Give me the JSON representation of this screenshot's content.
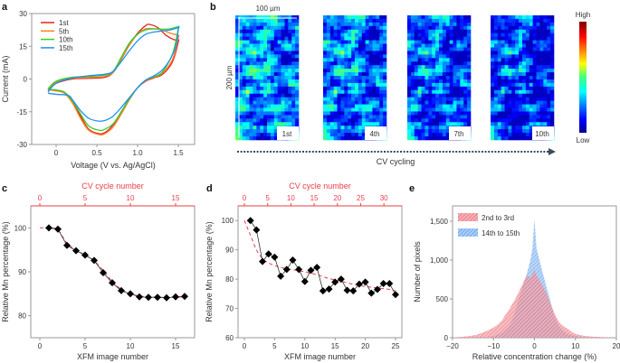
{
  "panels": {
    "a": "a",
    "b": "b",
    "c": "c",
    "d": "d",
    "e": "e"
  },
  "colors": {
    "axis": "#9a9a9a",
    "text": "#333333",
    "red_axis": "#e8404a",
    "cycle_1": "#e82020",
    "cycle_5": "#ff8020",
    "cycle_10": "#30d030",
    "cycle_15": "#2090f0",
    "hist_red": "#f08080",
    "hist_blue": "#6aa8f0",
    "arrow": "#3c4a5c"
  },
  "chart_data": [
    {
      "id": "a",
      "type": "line",
      "title": "",
      "xlabel": "Voltage (V vs. Ag/AgCl)",
      "ylabel": "Current (mA)",
      "xlim": [
        -0.2,
        1.7
      ],
      "ylim": [
        -30,
        30
      ],
      "xticks": [
        "0",
        "0.5",
        "1.0",
        "1.5"
      ],
      "xtick_values": [
        0,
        0.5,
        1.0,
        1.5
      ],
      "yticks": [
        "30",
        "15",
        "0",
        "-15",
        "-30"
      ],
      "ytick_values": [
        30,
        15,
        0,
        -15,
        -30
      ],
      "legend": "top-left",
      "series": [
        {
          "name": "1st",
          "color_key": "cycle_1",
          "forward": [
            [
              -0.1,
              -5
            ],
            [
              0,
              -2
            ],
            [
              0.2,
              0
            ],
            [
              0.4,
              0.3
            ],
            [
              0.6,
              0.8
            ],
            [
              0.7,
              3
            ],
            [
              0.8,
              9
            ],
            [
              0.9,
              16
            ],
            [
              1.0,
              21
            ],
            [
              1.1,
              24.5
            ],
            [
              1.15,
              25
            ],
            [
              1.25,
              23.5
            ],
            [
              1.35,
              20
            ],
            [
              1.45,
              18
            ],
            [
              1.5,
              18
            ]
          ],
          "reverse": [
            [
              1.5,
              17
            ],
            [
              1.45,
              10
            ],
            [
              1.4,
              6
            ],
            [
              1.3,
              2
            ],
            [
              1.2,
              0.5
            ],
            [
              1.1,
              -1
            ],
            [
              1.0,
              -4
            ],
            [
              0.9,
              -9
            ],
            [
              0.8,
              -15
            ],
            [
              0.7,
              -21
            ],
            [
              0.6,
              -24.5
            ],
            [
              0.52,
              -25
            ],
            [
              0.4,
              -23
            ],
            [
              0.3,
              -17
            ],
            [
              0.2,
              -10
            ],
            [
              0.1,
              -6
            ],
            [
              0,
              -5.2
            ],
            [
              -0.1,
              -5
            ]
          ]
        },
        {
          "name": "5th",
          "color_key": "cycle_5",
          "forward": [
            [
              -0.1,
              -5
            ],
            [
              0,
              -1.5
            ],
            [
              0.2,
              0.3
            ],
            [
              0.4,
              0.7
            ],
            [
              0.6,
              1.2
            ],
            [
              0.7,
              3.2
            ],
            [
              0.8,
              9
            ],
            [
              0.9,
              15.5
            ],
            [
              1.0,
              20.5
            ],
            [
              1.1,
              23
            ],
            [
              1.2,
              23
            ],
            [
              1.3,
              22.5
            ],
            [
              1.4,
              21
            ],
            [
              1.5,
              20
            ]
          ],
          "reverse": [
            [
              1.5,
              19
            ],
            [
              1.45,
              11
            ],
            [
              1.4,
              7
            ],
            [
              1.3,
              2.5
            ],
            [
              1.2,
              0.8
            ],
            [
              1.1,
              -0.8
            ],
            [
              1.0,
              -4
            ],
            [
              0.9,
              -9.5
            ],
            [
              0.8,
              -16
            ],
            [
              0.7,
              -22
            ],
            [
              0.6,
              -25
            ],
            [
              0.53,
              -25.5
            ],
            [
              0.4,
              -23.5
            ],
            [
              0.3,
              -18
            ],
            [
              0.2,
              -11
            ],
            [
              0.1,
              -6.5
            ],
            [
              0,
              -5.5
            ],
            [
              -0.1,
              -5
            ]
          ]
        },
        {
          "name": "10th",
          "color_key": "cycle_10",
          "forward": [
            [
              -0.1,
              -4.5
            ],
            [
              0,
              -1
            ],
            [
              0.2,
              0.8
            ],
            [
              0.4,
              1.2
            ],
            [
              0.6,
              1.8
            ],
            [
              0.7,
              3.5
            ],
            [
              0.8,
              10
            ],
            [
              0.9,
              16.5
            ],
            [
              1.0,
              20.5
            ],
            [
              1.1,
              22.5
            ],
            [
              1.2,
              23
            ],
            [
              1.3,
              22.8
            ],
            [
              1.4,
              23
            ],
            [
              1.5,
              24
            ]
          ],
          "reverse": [
            [
              1.5,
              23
            ],
            [
              1.45,
              14
            ],
            [
              1.4,
              9
            ],
            [
              1.3,
              3
            ],
            [
              1.2,
              1
            ],
            [
              1.1,
              -0.5
            ],
            [
              1.0,
              -4
            ],
            [
              0.9,
              -9
            ],
            [
              0.8,
              -15
            ],
            [
              0.7,
              -20.5
            ],
            [
              0.6,
              -23
            ],
            [
              0.53,
              -23.5
            ],
            [
              0.4,
              -21.5
            ],
            [
              0.3,
              -16
            ],
            [
              0.2,
              -10
            ],
            [
              0.1,
              -6
            ],
            [
              0,
              -5
            ],
            [
              -0.1,
              -4.8
            ]
          ]
        },
        {
          "name": "15th",
          "color_key": "cycle_15",
          "forward": [
            [
              -0.1,
              -6
            ],
            [
              0,
              -2
            ],
            [
              0.2,
              0.5
            ],
            [
              0.4,
              1.5
            ],
            [
              0.6,
              2.2
            ],
            [
              0.7,
              3.5
            ],
            [
              0.8,
              8
            ],
            [
              0.9,
              13
            ],
            [
              1.0,
              17.5
            ],
            [
              1.1,
              20.5
            ],
            [
              1.2,
              21.5
            ],
            [
              1.3,
              22
            ],
            [
              1.4,
              22.5
            ],
            [
              1.5,
              23.5
            ]
          ],
          "reverse": [
            [
              1.5,
              23
            ],
            [
              1.47,
              15
            ],
            [
              1.4,
              9
            ],
            [
              1.3,
              4
            ],
            [
              1.2,
              1.5
            ],
            [
              1.1,
              -0.5
            ],
            [
              1.0,
              -4
            ],
            [
              0.9,
              -8.5
            ],
            [
              0.8,
              -13
            ],
            [
              0.7,
              -17
            ],
            [
              0.6,
              -19
            ],
            [
              0.52,
              -19.3
            ],
            [
              0.4,
              -18
            ],
            [
              0.3,
              -14.5
            ],
            [
              0.2,
              -9.5
            ],
            [
              0.15,
              -7.5
            ],
            [
              0,
              -7
            ],
            [
              -0.1,
              -6.5
            ]
          ]
        }
      ]
    },
    {
      "id": "b",
      "type": "heatmap",
      "scale_x_label": "100 µm",
      "scale_y_label": "200 µm",
      "frames": [
        "1st",
        "4th",
        "7th",
        "10th"
      ],
      "colorbar_high": "High",
      "colorbar_low": "Low",
      "arrow_label": "CV cycling"
    },
    {
      "id": "c",
      "type": "line",
      "xlabel": "XFM image number",
      "ylabel": "Relative Mn percentage (%)",
      "top_xlabel": "CV cycle number",
      "xlim": [
        -1,
        17
      ],
      "ylim": [
        75,
        105
      ],
      "xticks": [
        "0",
        "5",
        "10",
        "15"
      ],
      "xtick_values": [
        0,
        5,
        10,
        15
      ],
      "top_xticks": [
        "0",
        "5",
        "10",
        "15"
      ],
      "top_xtick_values": [
        0,
        5,
        10,
        15
      ],
      "yticks": [
        "100",
        "90",
        "80"
      ],
      "ytick_values": [
        100,
        90,
        80
      ],
      "x": [
        1,
        2,
        3,
        4,
        5,
        6,
        7,
        8,
        9,
        10,
        11,
        12,
        13,
        14,
        15,
        16
      ],
      "values": [
        100,
        99.7,
        96,
        94.8,
        93.8,
        92.6,
        89.8,
        87.5,
        85.7,
        85,
        84.3,
        84.2,
        84.2,
        84.1,
        84.3,
        84.4
      ],
      "fit_x": [
        0,
        1,
        2,
        3,
        4,
        5,
        6,
        7,
        8,
        9,
        10,
        11,
        12,
        13,
        14,
        15,
        16
      ],
      "fit_values": [
        100,
        100,
        99.5,
        96.5,
        95,
        93.8,
        92.5,
        90.3,
        87.8,
        86,
        85,
        84.5,
        84.3,
        84.2,
        84.2,
        84.2,
        84.3
      ]
    },
    {
      "id": "d",
      "type": "line",
      "xlabel": "XFM image number",
      "ylabel": "Relative Mn percentage (%)",
      "top_xlabel": "CV cycle number",
      "xlim": [
        -1,
        26
      ],
      "ylim": [
        60,
        105
      ],
      "xticks": [
        "0",
        "5",
        "10",
        "15",
        "20",
        "25"
      ],
      "xtick_values": [
        0,
        5,
        10,
        15,
        20,
        25
      ],
      "top_xticks": [
        "0",
        "5",
        "10",
        "15",
        "20",
        "25",
        "30"
      ],
      "top_xtick_values": [
        0,
        5,
        10,
        15,
        20,
        25,
        30
      ],
      "top_per_bottom": 1.3,
      "yticks": [
        "100",
        "90",
        "80",
        "70",
        "60"
      ],
      "ytick_values": [
        100,
        90,
        80,
        70,
        60
      ],
      "x": [
        1,
        2,
        3,
        4,
        5,
        6,
        7,
        8,
        9,
        10,
        11,
        12,
        13,
        14,
        15,
        16,
        17,
        18,
        19,
        20,
        21,
        22,
        23,
        24,
        25
      ],
      "values": [
        100,
        96.8,
        86,
        88.6,
        87.5,
        81,
        83.3,
        86.5,
        83.3,
        79.2,
        83,
        84,
        76,
        76.6,
        79,
        80,
        76.2,
        76,
        78.3,
        79,
        75.2,
        76.5,
        78.5,
        78.5,
        74.7
      ],
      "fit_x": [
        0,
        1,
        2,
        3,
        4,
        6,
        8,
        10,
        12,
        14,
        16,
        18,
        20,
        22,
        24,
        25
      ],
      "fit_values": [
        100,
        95,
        90,
        87,
        85.5,
        84,
        83.2,
        82.5,
        81.5,
        80.2,
        79.3,
        78.2,
        77.5,
        77,
        76.5,
        76
      ]
    },
    {
      "id": "e",
      "type": "area",
      "xlabel": "Relative concentration change (%)",
      "ylabel": "Number of pixels",
      "xlim": [
        -20,
        20
      ],
      "ylim": [
        0,
        1700
      ],
      "xticks": [
        "−20",
        "−10",
        "0",
        "10",
        "20"
      ],
      "xtick_values": [
        -20,
        -10,
        0,
        10,
        20
      ],
      "yticks": [
        "0",
        "500",
        "1,000",
        "1,500"
      ],
      "ytick_values": [
        0,
        500,
        1000,
        1500
      ],
      "legend": "top-left",
      "series": [
        {
          "name": "2nd to 3rd",
          "color_key": "hist_red",
          "x": [
            -20,
            -18,
            -16,
            -14,
            -12,
            -10,
            -9,
            -8,
            -7,
            -6,
            -5,
            -4,
            -3,
            -2,
            -1.5,
            -1,
            -0.5,
            0,
            0.5,
            1,
            2,
            3,
            4,
            5,
            6,
            7,
            8,
            9,
            10,
            12,
            14,
            16,
            18,
            20
          ],
          "y": [
            5,
            10,
            20,
            40,
            80,
            130,
            170,
            220,
            300,
            380,
            470,
            570,
            680,
            800,
            790,
            770,
            820,
            880,
            800,
            760,
            670,
            560,
            430,
            300,
            200,
            150,
            120,
            80,
            50,
            25,
            15,
            10,
            5,
            2
          ]
        },
        {
          "name": "14th to 15th",
          "color_key": "hist_blue",
          "x": [
            -20,
            -15,
            -12,
            -10,
            -8,
            -6,
            -5,
            -4,
            -3,
            -2,
            -1.5,
            -1,
            -0.5,
            0,
            0.5,
            1,
            1.5,
            2,
            3,
            4,
            5,
            6,
            7,
            8,
            10,
            12,
            15,
            20
          ],
          "y": [
            0,
            0,
            5,
            20,
            60,
            160,
            290,
            470,
            640,
            800,
            900,
            1000,
            1150,
            1530,
            1150,
            1050,
            940,
            840,
            640,
            450,
            260,
            150,
            90,
            50,
            20,
            8,
            2,
            0
          ]
        }
      ]
    }
  ]
}
